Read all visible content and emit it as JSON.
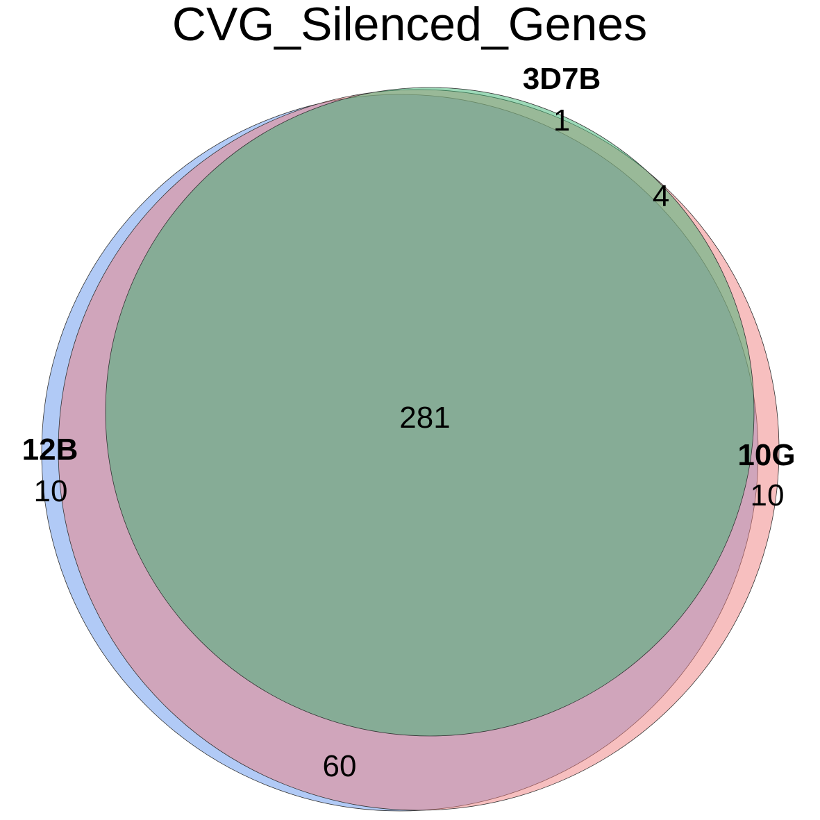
{
  "title": "CVG_Silenced_Genes",
  "sets": [
    {
      "name": "12B",
      "color": "#6495ED",
      "only_count": "10"
    },
    {
      "name": "10G",
      "color": "#F08080",
      "only_count": "10"
    },
    {
      "name": "3D7B",
      "color": "#3CB371",
      "only_count": "1"
    }
  ],
  "intersections": {
    "12B_10G": "60",
    "10G_3D7B": "4",
    "all": "281"
  },
  "chart_data": {
    "type": "venn",
    "title": "CVG_Silenced_Genes",
    "sets": [
      "12B",
      "10G",
      "3D7B"
    ],
    "regions": [
      {
        "sets": [
          "12B"
        ],
        "value": 10
      },
      {
        "sets": [
          "10G"
        ],
        "value": 10
      },
      {
        "sets": [
          "3D7B"
        ],
        "value": 1
      },
      {
        "sets": [
          "12B",
          "10G"
        ],
        "value": 60
      },
      {
        "sets": [
          "10G",
          "3D7B"
        ],
        "value": 4
      },
      {
        "sets": [
          "12B",
          "10G",
          "3D7B"
        ],
        "value": 281
      }
    ]
  }
}
